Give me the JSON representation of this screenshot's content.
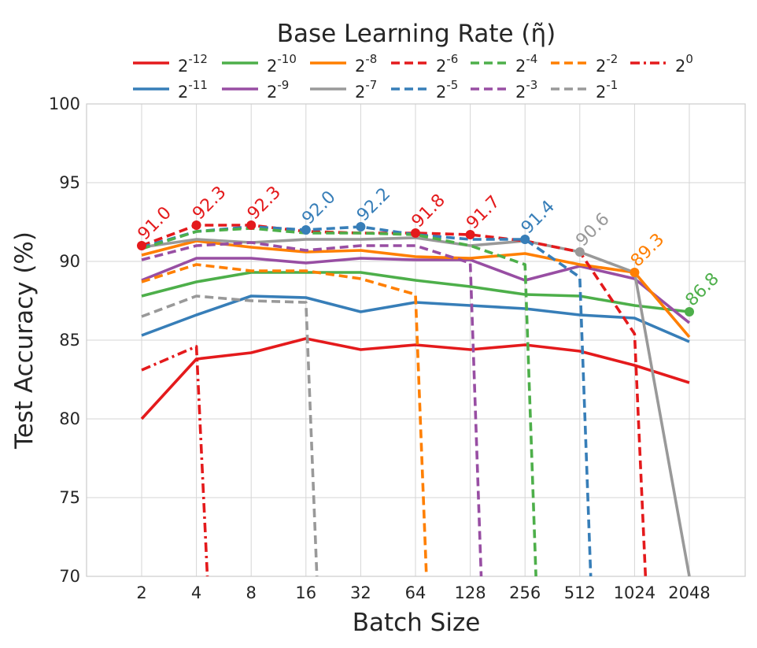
{
  "chart_data": {
    "type": "line",
    "legend_title": "Base Learning Rate (η̃)",
    "legend_position": "top",
    "xlabel": "Batch Size",
    "ylabel": "Test Accuracy (%)",
    "x_categories": [
      "2",
      "4",
      "8",
      "16",
      "32",
      "64",
      "128",
      "256",
      "512",
      "1024",
      "2048"
    ],
    "ylim": [
      70,
      100
    ],
    "yticks": [
      "70",
      "75",
      "80",
      "85",
      "90",
      "95",
      "100"
    ],
    "grid": true,
    "series": [
      {
        "name": "2^-12",
        "base": "2",
        "exp": "-12",
        "color": "#e41a1c",
        "dash": "solid",
        "values": [
          80.0,
          83.8,
          84.2,
          85.1,
          84.4,
          84.7,
          84.4,
          84.7,
          84.3,
          83.4,
          82.3
        ]
      },
      {
        "name": "2^-11",
        "base": "2",
        "exp": "-11",
        "color": "#377eb8",
        "dash": "solid",
        "values": [
          85.3,
          86.6,
          87.8,
          87.7,
          86.8,
          87.4,
          87.2,
          87.0,
          86.6,
          86.4,
          84.9
        ]
      },
      {
        "name": "2^-10",
        "base": "2",
        "exp": "-10",
        "color": "#4daf4a",
        "dash": "solid",
        "values": [
          87.8,
          88.7,
          89.3,
          89.3,
          89.3,
          88.8,
          88.4,
          87.9,
          87.8,
          87.2,
          86.8
        ]
      },
      {
        "name": "2^-9",
        "base": "2",
        "exp": "-9",
        "color": "#984ea3",
        "dash": "solid",
        "values": [
          88.8,
          90.2,
          90.2,
          89.9,
          90.2,
          90.1,
          90.1,
          88.8,
          89.7,
          88.9,
          86.1
        ]
      },
      {
        "name": "2^-8",
        "base": "2",
        "exp": "-8",
        "color": "#ff7f00",
        "dash": "solid",
        "values": [
          90.4,
          91.3,
          90.9,
          90.6,
          90.7,
          90.3,
          90.2,
          90.5,
          89.8,
          89.3,
          85.2
        ]
      },
      {
        "name": "2^-7",
        "base": "2",
        "exp": "-7",
        "color": "#999999",
        "dash": "solid",
        "values": [
          90.9,
          91.4,
          91.2,
          91.4,
          91.4,
          91.5,
          91.0,
          91.3,
          90.6,
          89.3,
          70.0
        ]
      },
      {
        "name": "2^-6",
        "base": "2",
        "exp": "-6",
        "color": "#e41a1c",
        "dash": "dashed",
        "values": [
          91.0,
          92.3,
          92.3,
          91.9,
          91.8,
          91.8,
          91.7,
          91.3,
          90.6,
          85.4,
          null
        ],
        "drop_to": 70
      },
      {
        "name": "2^-5",
        "base": "2",
        "exp": "-5",
        "color": "#377eb8",
        "dash": "dashed",
        "values": [
          90.9,
          91.9,
          92.2,
          92.0,
          92.2,
          91.7,
          91.4,
          91.4,
          89.0,
          null,
          null
        ],
        "drop_to": 70
      },
      {
        "name": "2^-4",
        "base": "2",
        "exp": "-4",
        "color": "#4daf4a",
        "dash": "dashed",
        "values": [
          90.8,
          91.9,
          92.1,
          91.8,
          91.8,
          91.7,
          91.0,
          89.8,
          null,
          null,
          null
        ],
        "drop_to": 70
      },
      {
        "name": "2^-3",
        "base": "2",
        "exp": "-3",
        "color": "#984ea3",
        "dash": "dashed",
        "values": [
          90.1,
          91.0,
          91.2,
          90.7,
          91.0,
          91.0,
          89.9,
          null,
          null,
          null,
          null
        ],
        "drop_to": 70
      },
      {
        "name": "2^-2",
        "base": "2",
        "exp": "-2",
        "color": "#ff7f00",
        "dash": "dashed",
        "values": [
          88.7,
          89.8,
          89.4,
          89.4,
          88.9,
          87.9,
          null,
          null,
          null,
          null,
          null
        ],
        "drop_to": 70
      },
      {
        "name": "2^-1",
        "base": "2",
        "exp": "-1",
        "color": "#999999",
        "dash": "dashed",
        "values": [
          86.5,
          87.8,
          87.5,
          87.4,
          null,
          null,
          null,
          null,
          null,
          null,
          null
        ],
        "drop_to": 70
      },
      {
        "name": "2^0",
        "base": "2",
        "exp": "0",
        "color": "#e41a1c",
        "dash": "dashdot",
        "values": [
          83.1,
          84.6,
          null,
          null,
          null,
          null,
          null,
          null,
          null,
          null,
          null
        ],
        "drop_to": 70
      }
    ],
    "best_points": [
      {
        "x_index": 0,
        "value": 91.0,
        "label": "91.0",
        "color": "#e41a1c"
      },
      {
        "x_index": 1,
        "value": 92.3,
        "label": "92.3",
        "color": "#e41a1c"
      },
      {
        "x_index": 2,
        "value": 92.3,
        "label": "92.3",
        "color": "#e41a1c"
      },
      {
        "x_index": 3,
        "value": 92.0,
        "label": "92.0",
        "color": "#377eb8"
      },
      {
        "x_index": 4,
        "value": 92.2,
        "label": "92.2",
        "color": "#377eb8"
      },
      {
        "x_index": 5,
        "value": 91.8,
        "label": "91.8",
        "color": "#e41a1c"
      },
      {
        "x_index": 6,
        "value": 91.7,
        "label": "91.7",
        "color": "#e41a1c"
      },
      {
        "x_index": 7,
        "value": 91.4,
        "label": "91.4",
        "color": "#377eb8"
      },
      {
        "x_index": 8,
        "value": 90.6,
        "label": "90.6",
        "color": "#999999"
      },
      {
        "x_index": 9,
        "value": 89.3,
        "label": "89.3",
        "color": "#ff7f00"
      },
      {
        "x_index": 10,
        "value": 86.8,
        "label": "86.8",
        "color": "#4daf4a"
      }
    ]
  }
}
